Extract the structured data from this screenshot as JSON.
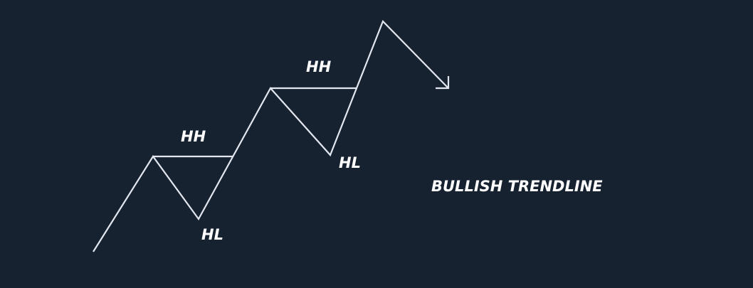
{
  "title": "BULLISH TRENDLINE",
  "labels": {
    "hh_1": "HH",
    "hl_1": "HL",
    "hh_2": "HH",
    "hl_2": "HL"
  },
  "colors": {
    "background": "#172231",
    "line": "#e2e6ee",
    "text": "#ffffff"
  }
}
